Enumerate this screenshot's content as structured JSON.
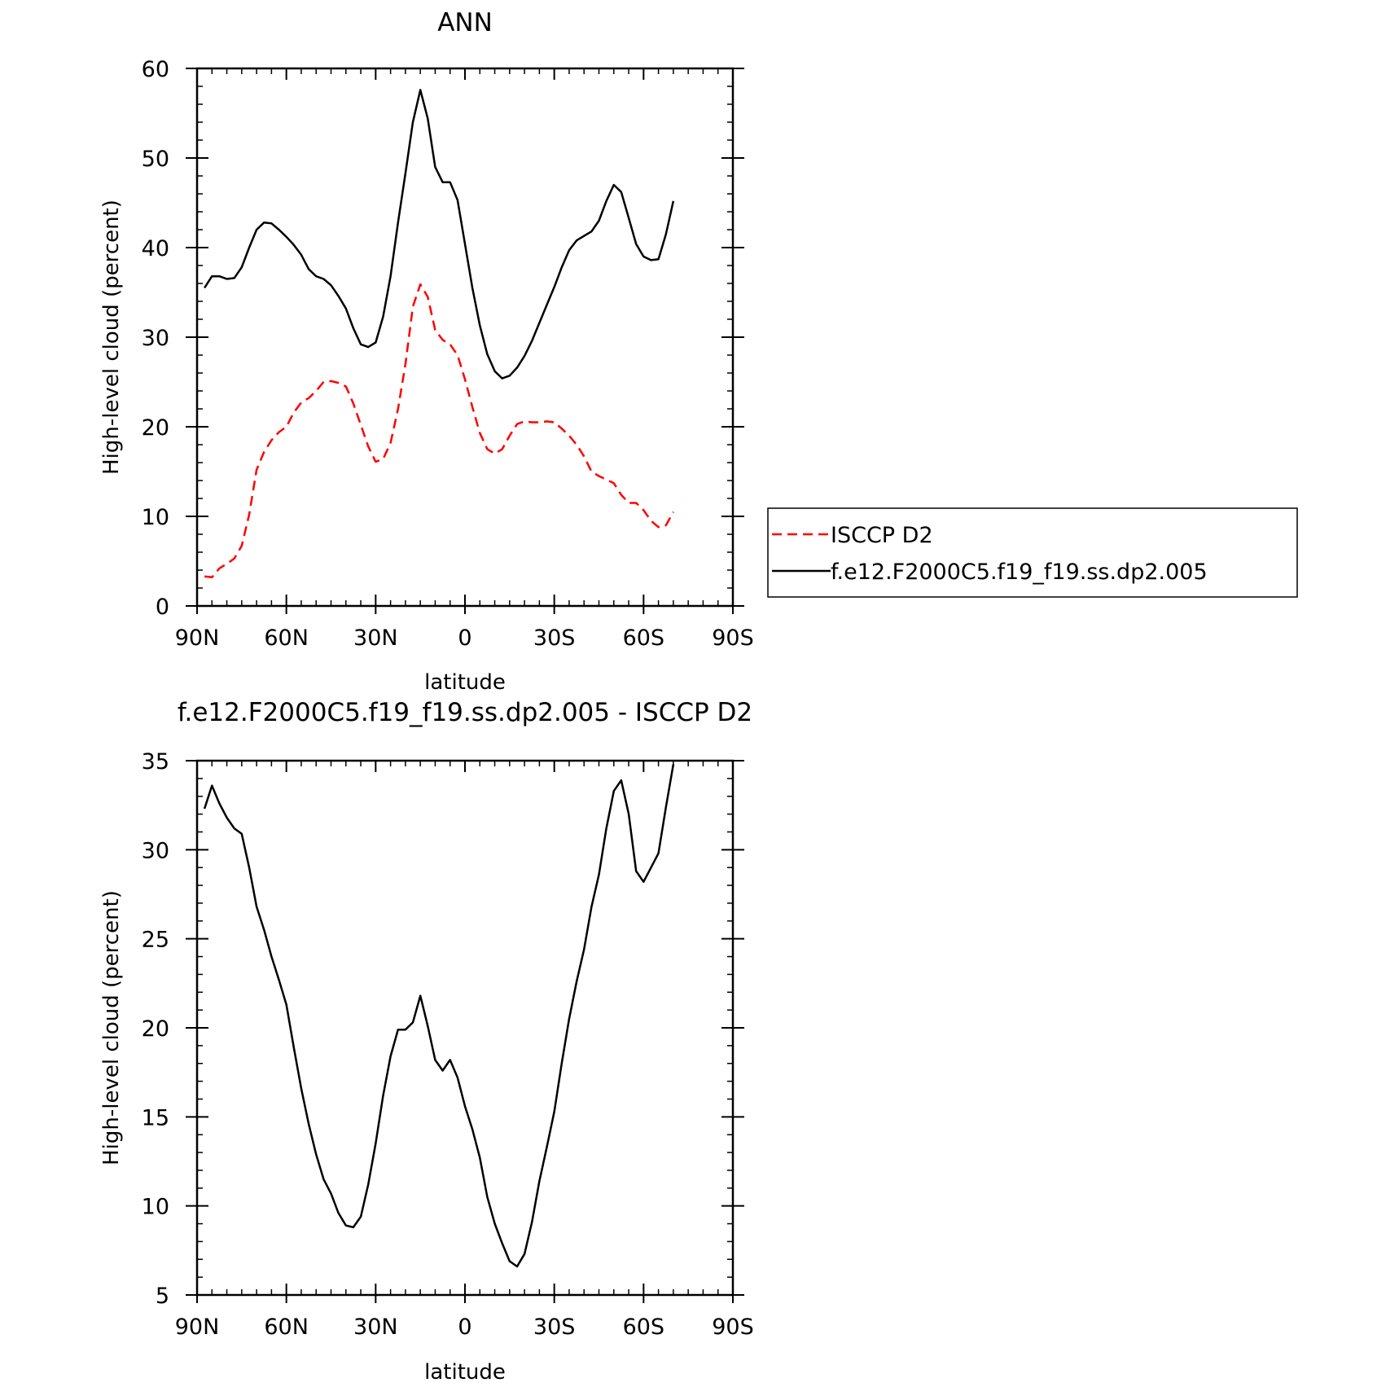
{
  "chart_data": [
    {
      "type": "line",
      "title": "ANN",
      "xlabel": "latitude",
      "ylabel": "High-level cloud (percent)",
      "xlim": [
        90,
        -90
      ],
      "ylim": [
        0,
        60
      ],
      "x_ticks": [
        90,
        60,
        30,
        0,
        -30,
        -60,
        -90
      ],
      "x_tick_labels": [
        "90N",
        "60N",
        "30N",
        "0",
        "30S",
        "60S",
        "90S"
      ],
      "y_ticks": [
        0,
        10,
        20,
        30,
        40,
        50,
        60
      ],
      "y_tick_labels": [
        "0",
        "10",
        "20",
        "30",
        "40",
        "50",
        "60"
      ],
      "grid": false,
      "legend_position": "right",
      "series": [
        {
          "name": "ISCCP D2",
          "color": "#ff0000",
          "dash": "dashed",
          "points": [
            [
              87.5,
              3.3
            ],
            [
              85,
              3.2
            ],
            [
              82.5,
              4.2
            ],
            [
              80,
              4.7
            ],
            [
              77.5,
              5.3
            ],
            [
              75,
              6.7
            ],
            [
              72.5,
              10.2
            ],
            [
              70,
              15.2
            ],
            [
              67.5,
              17.2
            ],
            [
              65,
              18.5
            ],
            [
              62.5,
              19.4
            ],
            [
              60,
              20.0
            ],
            [
              57.5,
              21.6
            ],
            [
              55,
              22.7
            ],
            [
              52.5,
              23.2
            ],
            [
              50,
              24.0
            ],
            [
              47.5,
              25.0
            ],
            [
              45,
              25.1
            ],
            [
              42.5,
              24.9
            ],
            [
              40,
              24.5
            ],
            [
              37.5,
              22.6
            ],
            [
              35,
              20.2
            ],
            [
              32.5,
              17.8
            ],
            [
              30,
              16.1
            ],
            [
              27.5,
              16.4
            ],
            [
              25,
              18.2
            ],
            [
              22.5,
              22.0
            ],
            [
              20,
              27.0
            ],
            [
              17.5,
              33.4
            ],
            [
              15,
              35.9
            ],
            [
              12.5,
              34.5
            ],
            [
              10,
              30.8
            ],
            [
              7.5,
              29.7
            ],
            [
              5,
              29.2
            ],
            [
              2.5,
              28.0
            ],
            [
              0,
              25.3
            ],
            [
              -2.5,
              22.2
            ],
            [
              -5,
              19.3
            ],
            [
              -7.5,
              17.5
            ],
            [
              -10,
              17.0
            ],
            [
              -12.5,
              17.5
            ],
            [
              -15,
              19.0
            ],
            [
              -17.5,
              20.3
            ],
            [
              -20,
              20.6
            ],
            [
              -22.5,
              20.5
            ],
            [
              -25,
              20.5
            ],
            [
              -27.5,
              20.6
            ],
            [
              -30,
              20.5
            ],
            [
              -32.5,
              19.8
            ],
            [
              -35,
              19.0
            ],
            [
              -37.5,
              18.0
            ],
            [
              -40,
              16.7
            ],
            [
              -42.5,
              15.0
            ],
            [
              -45,
              14.5
            ],
            [
              -47.5,
              14.1
            ],
            [
              -50,
              13.7
            ],
            [
              -52.5,
              12.4
            ],
            [
              -55,
              11.5
            ],
            [
              -57.5,
              11.5
            ],
            [
              -60,
              10.7
            ],
            [
              -62.5,
              9.5
            ],
            [
              -65,
              8.8
            ],
            [
              -67.5,
              9.0
            ],
            [
              -70,
              10.5
            ]
          ]
        },
        {
          "name": "f.e12.F2000C5.f19_f19.ss.dp2.005",
          "color": "#000000",
          "dash": "solid",
          "points": [
            [
              87.5,
              35.5
            ],
            [
              85,
              36.8
            ],
            [
              82.5,
              36.8
            ],
            [
              80,
              36.5
            ],
            [
              77.5,
              36.6
            ],
            [
              75,
              37.8
            ],
            [
              72.5,
              40.0
            ],
            [
              70,
              42.0
            ],
            [
              67.5,
              42.8
            ],
            [
              65,
              42.7
            ],
            [
              62.5,
              42.0
            ],
            [
              60,
              41.2
            ],
            [
              57.5,
              40.3
            ],
            [
              55,
              39.2
            ],
            [
              52.5,
              37.6
            ],
            [
              50,
              36.8
            ],
            [
              47.5,
              36.5
            ],
            [
              45,
              35.8
            ],
            [
              42.5,
              34.6
            ],
            [
              40,
              33.2
            ],
            [
              37.5,
              31.0
            ],
            [
              35,
              29.2
            ],
            [
              32.5,
              28.9
            ],
            [
              30,
              29.4
            ],
            [
              27.5,
              32.3
            ],
            [
              25,
              36.8
            ],
            [
              22.5,
              42.8
            ],
            [
              20,
              48.3
            ],
            [
              17.5,
              54.0
            ],
            [
              15,
              57.6
            ],
            [
              12.5,
              54.4
            ],
            [
              10,
              49.0
            ],
            [
              7.5,
              47.3
            ],
            [
              5,
              47.3
            ],
            [
              2.5,
              45.3
            ],
            [
              0,
              40.4
            ],
            [
              -2.5,
              35.5
            ],
            [
              -5,
              31.3
            ],
            [
              -7.5,
              28.1
            ],
            [
              -10,
              26.2
            ],
            [
              -12.5,
              25.4
            ],
            [
              -15,
              25.7
            ],
            [
              -17.5,
              26.6
            ],
            [
              -20,
              27.9
            ],
            [
              -22.5,
              29.6
            ],
            [
              -25,
              31.6
            ],
            [
              -27.5,
              33.6
            ],
            [
              -30,
              35.6
            ],
            [
              -32.5,
              37.8
            ],
            [
              -35,
              39.7
            ],
            [
              -37.5,
              40.8
            ],
            [
              -40,
              41.3
            ],
            [
              -42.5,
              41.8
            ],
            [
              -45,
              43.0
            ],
            [
              -47.5,
              45.2
            ],
            [
              -50,
              47.0
            ],
            [
              -52.5,
              46.2
            ],
            [
              -55,
              43.3
            ],
            [
              -57.5,
              40.4
            ],
            [
              -60,
              39.0
            ],
            [
              -62.5,
              38.6
            ],
            [
              -65,
              38.7
            ],
            [
              -67.5,
              41.5
            ],
            [
              -70,
              45.2
            ]
          ]
        }
      ]
    },
    {
      "type": "line",
      "title": "f.e12.F2000C5.f19_f19.ss.dp2.005 - ISCCP D2",
      "xlabel": "latitude",
      "ylabel": "High-level cloud (percent)",
      "xlim": [
        90,
        -90
      ],
      "ylim": [
        5,
        35
      ],
      "x_ticks": [
        90,
        60,
        30,
        0,
        -30,
        -60,
        -90
      ],
      "x_tick_labels": [
        "90N",
        "60N",
        "30N",
        "0",
        "30S",
        "60S",
        "90S"
      ],
      "y_ticks": [
        5,
        10,
        15,
        20,
        25,
        30,
        35
      ],
      "y_tick_labels": [
        "5",
        "10",
        "15",
        "20",
        "25",
        "30",
        "35"
      ],
      "grid": false,
      "series": [
        {
          "color": "#000000",
          "dash": "solid",
          "points": [
            [
              87.5,
              32.3
            ],
            [
              85,
              33.6
            ],
            [
              82.5,
              32.6
            ],
            [
              80,
              31.8
            ],
            [
              77.5,
              31.2
            ],
            [
              75,
              30.9
            ],
            [
              72.5,
              29.0
            ],
            [
              70,
              26.8
            ],
            [
              67.5,
              25.5
            ],
            [
              65,
              24.0
            ],
            [
              62.5,
              22.7
            ],
            [
              60,
              21.3
            ],
            [
              57.5,
              18.9
            ],
            [
              55,
              16.6
            ],
            [
              52.5,
              14.6
            ],
            [
              50,
              12.9
            ],
            [
              47.5,
              11.5
            ],
            [
              45,
              10.7
            ],
            [
              42.5,
              9.6
            ],
            [
              40,
              8.9
            ],
            [
              37.5,
              8.8
            ],
            [
              35,
              9.4
            ],
            [
              32.5,
              11.2
            ],
            [
              30,
              13.5
            ],
            [
              27.5,
              16.2
            ],
            [
              25,
              18.4
            ],
            [
              22.5,
              19.9
            ],
            [
              20,
              19.9
            ],
            [
              17.5,
              20.3
            ],
            [
              15,
              21.8
            ],
            [
              12.5,
              20.1
            ],
            [
              10,
              18.2
            ],
            [
              7.5,
              17.6
            ],
            [
              5,
              18.2
            ],
            [
              2.5,
              17.2
            ],
            [
              0,
              15.6
            ],
            [
              -2.5,
              14.3
            ],
            [
              -5,
              12.7
            ],
            [
              -7.5,
              10.5
            ],
            [
              -10,
              9.0
            ],
            [
              -12.5,
              7.9
            ],
            [
              -15,
              6.9
            ],
            [
              -17.5,
              6.6
            ],
            [
              -20,
              7.3
            ],
            [
              -22.5,
              9.1
            ],
            [
              -25,
              11.4
            ],
            [
              -27.5,
              13.3
            ],
            [
              -30,
              15.3
            ],
            [
              -32.5,
              18.0
            ],
            [
              -35,
              20.5
            ],
            [
              -37.5,
              22.6
            ],
            [
              -40,
              24.4
            ],
            [
              -42.5,
              26.8
            ],
            [
              -45,
              28.6
            ],
            [
              -47.5,
              31.2
            ],
            [
              -50,
              33.3
            ],
            [
              -52.5,
              33.9
            ],
            [
              -55,
              32.0
            ],
            [
              -57.5,
              28.8
            ],
            [
              -60,
              28.2
            ],
            [
              -62.5,
              29.0
            ],
            [
              -65,
              29.8
            ],
            [
              -67.5,
              32.4
            ],
            [
              -70,
              34.8
            ]
          ]
        }
      ]
    }
  ],
  "legend": {
    "items": [
      {
        "label": "ISCCP D2",
        "color": "#ff0000",
        "dash": "dashed"
      },
      {
        "label": "f.e12.F2000C5.f19_f19.ss.dp2.005",
        "color": "#000000",
        "dash": "solid"
      }
    ]
  }
}
